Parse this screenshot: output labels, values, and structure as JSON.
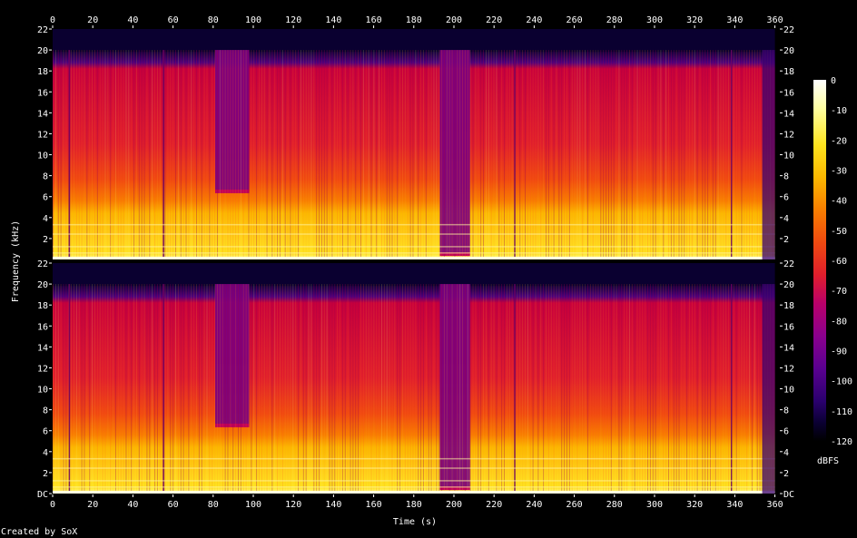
{
  "chart_data": {
    "type": "heatmap",
    "title": "",
    "xlabel": "Time (s)",
    "ylabel": "Frequency (kHz)",
    "x_ticks": [
      "0",
      "20",
      "40",
      "60",
      "80",
      "100",
      "120",
      "140",
      "160",
      "180",
      "200",
      "220",
      "240",
      "260",
      "280",
      "300",
      "320",
      "340",
      "360"
    ],
    "xlim": [
      0,
      362
    ],
    "y_ticks_top_channel": [
      "22",
      "20",
      "18",
      "16",
      "14",
      "12",
      "10",
      "8",
      "6",
      "4",
      "2"
    ],
    "y_ticks_bottom_channel": [
      "22",
      "20",
      "18",
      "16",
      "14",
      "12",
      "10",
      "8",
      "6",
      "4",
      "2",
      "DC"
    ],
    "ylim_khz": [
      0,
      22
    ],
    "channels": 2,
    "colorbar": {
      "label": "dBFS",
      "ticks": [
        "0",
        "-10",
        "-20",
        "-30",
        "-40",
        "-50",
        "-60",
        "-70",
        "-80",
        "-90",
        "-100",
        "-110",
        "-120"
      ],
      "range": [
        -120,
        0
      ]
    },
    "spectral_content": {
      "content_upper_edge_khz": 20,
      "dense_band_upper_edge_khz": 6,
      "dense_band_level_dbfs": -30,
      "upper_band_level_dbfs": -60,
      "cutoff_regions": [
        {
          "start_s": 81,
          "end_s": 98,
          "cutoff_khz": 6.5
        },
        {
          "start_s": 193,
          "end_s": 208,
          "cutoff_khz": 0.5
        }
      ],
      "audio_end_s": 360
    }
  },
  "footer": {
    "credit": "Created by SoX"
  },
  "colors": {
    "background": "#000000",
    "text": "#ffffff",
    "palette": [
      "#000000",
      "#0a0032",
      "#2a006e",
      "#5a0090",
      "#8a008e",
      "#b8006a",
      "#e01e2c",
      "#f04a10",
      "#f87e00",
      "#fcb800",
      "#ffe41e",
      "#ffffa0",
      "#ffffff"
    ]
  }
}
